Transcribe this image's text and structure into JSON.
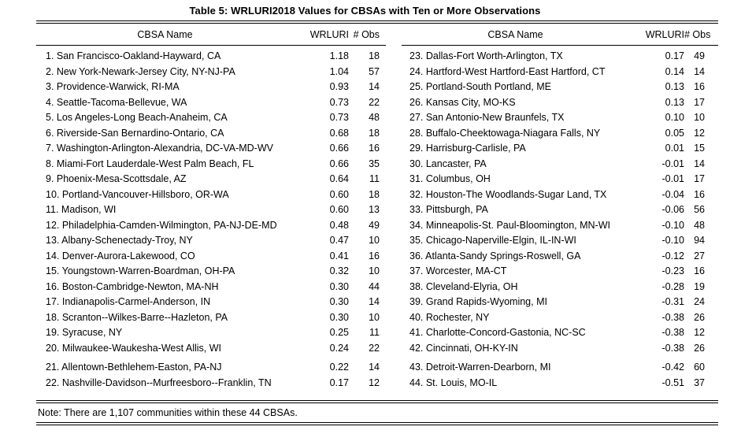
{
  "title": "Table 5: WRLURI2018 Values for CBSAs with Ten or More Observations",
  "columns": {
    "name": "CBSA Name",
    "wrluri": "WRLURI",
    "obs": "# Obs"
  },
  "note": "Note: There are 1,107 communities within these 44 CBSAs.",
  "colors": {
    "text": "#000000",
    "background": "#ffffff",
    "rule": "#000000"
  },
  "left_table": {
    "group_break_index": 20,
    "rows": [
      {
        "name": "1. San Francisco-Oakland-Hayward, CA",
        "wrluri": "1.18",
        "obs": "18"
      },
      {
        "name": "2. New York-Newark-Jersey City, NY-NJ-PA",
        "wrluri": "1.04",
        "obs": "57"
      },
      {
        "name": "3. Providence-Warwick, RI-MA",
        "wrluri": "0.93",
        "obs": "14"
      },
      {
        "name": "4. Seattle-Tacoma-Bellevue, WA",
        "wrluri": "0.73",
        "obs": "22"
      },
      {
        "name": "5. Los Angeles-Long Beach-Anaheim, CA",
        "wrluri": "0.73",
        "obs": "48"
      },
      {
        "name": "6. Riverside-San Bernardino-Ontario, CA",
        "wrluri": "0.68",
        "obs": "18"
      },
      {
        "name": "7. Washington-Arlington-Alexandria, DC-VA-MD-WV",
        "wrluri": "0.66",
        "obs": "16"
      },
      {
        "name": "8. Miami-Fort Lauderdale-West Palm Beach, FL",
        "wrluri": "0.66",
        "obs": "35"
      },
      {
        "name": "9. Phoenix-Mesa-Scottsdale, AZ",
        "wrluri": "0.64",
        "obs": "11"
      },
      {
        "name": "10. Portland-Vancouver-Hillsboro, OR-WA",
        "wrluri": "0.60",
        "obs": "18"
      },
      {
        "name": "11. Madison, WI",
        "wrluri": "0.60",
        "obs": "13"
      },
      {
        "name": "12. Philadelphia-Camden-Wilmington, PA-NJ-DE-MD",
        "wrluri": "0.48",
        "obs": "49"
      },
      {
        "name": "13. Albany-Schenectady-Troy, NY",
        "wrluri": "0.47",
        "obs": "10"
      },
      {
        "name": "14. Denver-Aurora-Lakewood, CO",
        "wrluri": "0.41",
        "obs": "16"
      },
      {
        "name": "15. Youngstown-Warren-Boardman, OH-PA",
        "wrluri": "0.32",
        "obs": "10"
      },
      {
        "name": "16. Boston-Cambridge-Newton, MA-NH",
        "wrluri": "0.30",
        "obs": "44"
      },
      {
        "name": "17. Indianapolis-Carmel-Anderson, IN",
        "wrluri": "0.30",
        "obs": "14"
      },
      {
        "name": "18. Scranton--Wilkes-Barre--Hazleton, PA",
        "wrluri": "0.30",
        "obs": "10"
      },
      {
        "name": "19. Syracuse, NY",
        "wrluri": "0.25",
        "obs": "11"
      },
      {
        "name": "20. Milwaukee-Waukesha-West Allis, WI",
        "wrluri": "0.24",
        "obs": "22"
      },
      {
        "name": "21. Allentown-Bethlehem-Easton, PA-NJ",
        "wrluri": "0.22",
        "obs": "14"
      },
      {
        "name": "22. Nashville-Davidson--Murfreesboro--Franklin, TN",
        "wrluri": "0.17",
        "obs": "12"
      }
    ]
  },
  "right_table": {
    "group_break_index": 20,
    "rows": [
      {
        "name": "23. Dallas-Fort Worth-Arlington, TX",
        "wrluri": "0.17",
        "obs": "49"
      },
      {
        "name": "24. Hartford-West Hartford-East Hartford, CT",
        "wrluri": "0.14",
        "obs": "14"
      },
      {
        "name": "25. Portland-South Portland, ME",
        "wrluri": "0.13",
        "obs": "16"
      },
      {
        "name": "26. Kansas City, MO-KS",
        "wrluri": "0.13",
        "obs": "17"
      },
      {
        "name": "27. San Antonio-New Braunfels, TX",
        "wrluri": "0.10",
        "obs": "10"
      },
      {
        "name": "28. Buffalo-Cheektowaga-Niagara Falls, NY",
        "wrluri": "0.05",
        "obs": "12"
      },
      {
        "name": "29. Harrisburg-Carlisle, PA",
        "wrluri": "0.01",
        "obs": "15"
      },
      {
        "name": "30. Lancaster, PA",
        "wrluri": "-0.01",
        "obs": "14"
      },
      {
        "name": "31. Columbus, OH",
        "wrluri": "-0.01",
        "obs": "17"
      },
      {
        "name": "32. Houston-The Woodlands-Sugar Land, TX",
        "wrluri": "-0.04",
        "obs": "16"
      },
      {
        "name": "33. Pittsburgh, PA",
        "wrluri": "-0.06",
        "obs": "56"
      },
      {
        "name": "34. Minneapolis-St. Paul-Bloomington, MN-WI",
        "wrluri": "-0.10",
        "obs": "48"
      },
      {
        "name": "35. Chicago-Naperville-Elgin, IL-IN-WI",
        "wrluri": "-0.10",
        "obs": "94"
      },
      {
        "name": "36. Atlanta-Sandy Springs-Roswell, GA",
        "wrluri": "-0.12",
        "obs": "27"
      },
      {
        "name": "37. Worcester, MA-CT",
        "wrluri": "-0.23",
        "obs": "16"
      },
      {
        "name": "38. Cleveland-Elyria, OH",
        "wrluri": "-0.28",
        "obs": "19"
      },
      {
        "name": "39. Grand Rapids-Wyoming, MI",
        "wrluri": "-0.31",
        "obs": "24"
      },
      {
        "name": "40. Rochester, NY",
        "wrluri": "-0.38",
        "obs": "26"
      },
      {
        "name": "41. Charlotte-Concord-Gastonia, NC-SC",
        "wrluri": "-0.38",
        "obs": "12"
      },
      {
        "name": "42. Cincinnati, OH-KY-IN",
        "wrluri": "-0.38",
        "obs": "26"
      },
      {
        "name": "43. Detroit-Warren-Dearborn, MI",
        "wrluri": "-0.42",
        "obs": "60"
      },
      {
        "name": "44. St. Louis, MO-IL",
        "wrluri": "-0.51",
        "obs": "37"
      }
    ]
  }
}
